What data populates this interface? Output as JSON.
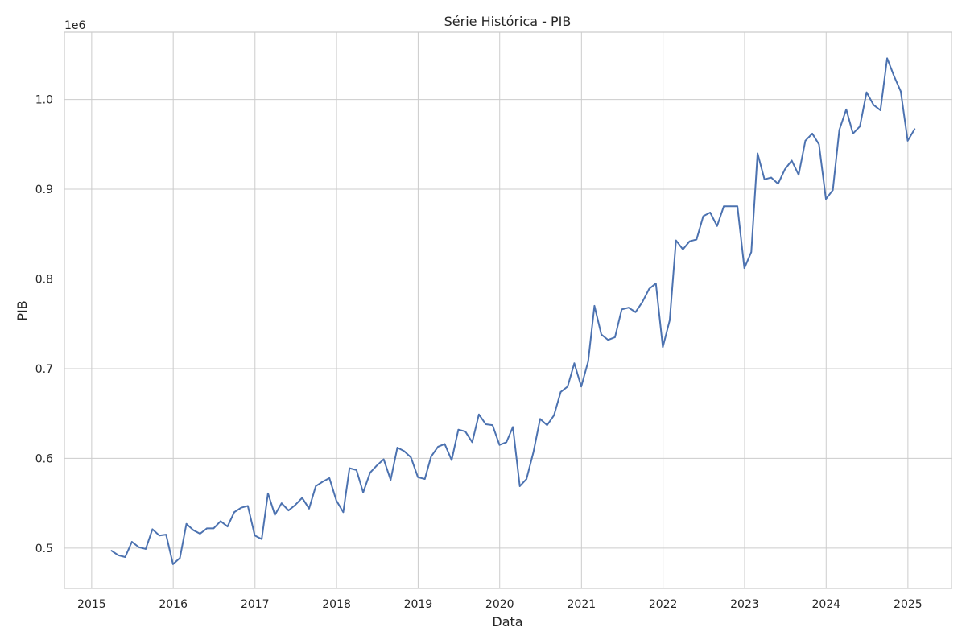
{
  "chart_data": {
    "type": "line",
    "title": "Série Histórica - PIB",
    "xlabel": "Data",
    "ylabel": "PIB",
    "offset_label": "1e6",
    "grid": true,
    "line_color": "#4c72b0",
    "x_ticks": [
      "2015",
      "2016",
      "2017",
      "2018",
      "2019",
      "2020",
      "2021",
      "2022",
      "2023",
      "2024",
      "2025"
    ],
    "y_ticks": [
      "0.5",
      "0.6",
      "0.7",
      "0.8",
      "0.9",
      "1.0"
    ],
    "y_tick_values": [
      500000,
      600000,
      700000,
      800000,
      900000,
      1000000
    ],
    "xlim": [
      "2014-09-01",
      "2025-07-15"
    ],
    "ylim": [
      455000,
      1075000
    ],
    "series": [
      {
        "values": [
          [
            "2015-03-31",
            497000
          ],
          [
            "2015-04-30",
            492000
          ],
          [
            "2015-05-31",
            490000
          ],
          [
            "2015-06-30",
            507000
          ],
          [
            "2015-07-31",
            501000
          ],
          [
            "2015-08-31",
            499000
          ],
          [
            "2015-09-30",
            521000
          ],
          [
            "2015-10-31",
            514000
          ],
          [
            "2015-11-30",
            515000
          ],
          [
            "2015-12-31",
            482000
          ],
          [
            "2016-01-31",
            489000
          ],
          [
            "2016-02-29",
            527000
          ],
          [
            "2016-03-31",
            520000
          ],
          [
            "2016-04-30",
            516000
          ],
          [
            "2016-05-31",
            522000
          ],
          [
            "2016-06-30",
            522000
          ],
          [
            "2016-07-31",
            530000
          ],
          [
            "2016-08-31",
            524000
          ],
          [
            "2016-09-30",
            540000
          ],
          [
            "2016-10-31",
            545000
          ],
          [
            "2016-11-30",
            547000
          ],
          [
            "2016-12-31",
            514000
          ],
          [
            "2017-01-31",
            510000
          ],
          [
            "2017-02-28",
            561000
          ],
          [
            "2017-03-31",
            537000
          ],
          [
            "2017-04-30",
            550000
          ],
          [
            "2017-05-31",
            542000
          ],
          [
            "2017-06-30",
            548000
          ],
          [
            "2017-07-31",
            556000
          ],
          [
            "2017-08-31",
            544000
          ],
          [
            "2017-09-30",
            569000
          ],
          [
            "2017-10-31",
            574000
          ],
          [
            "2017-11-30",
            578000
          ],
          [
            "2017-12-31",
            553000
          ],
          [
            "2018-01-31",
            540000
          ],
          [
            "2018-02-28",
            589000
          ],
          [
            "2018-03-31",
            587000
          ],
          [
            "2018-04-30",
            562000
          ],
          [
            "2018-05-31",
            584000
          ],
          [
            "2018-06-30",
            592000
          ],
          [
            "2018-07-31",
            599000
          ],
          [
            "2018-08-31",
            576000
          ],
          [
            "2018-09-30",
            612000
          ],
          [
            "2018-10-31",
            608000
          ],
          [
            "2018-11-30",
            601000
          ],
          [
            "2018-12-31",
            579000
          ],
          [
            "2019-01-31",
            577000
          ],
          [
            "2019-02-28",
            602000
          ],
          [
            "2019-03-31",
            613000
          ],
          [
            "2019-04-30",
            616000
          ],
          [
            "2019-05-31",
            598000
          ],
          [
            "2019-06-30",
            632000
          ],
          [
            "2019-07-31",
            630000
          ],
          [
            "2019-08-31",
            618000
          ],
          [
            "2019-09-30",
            649000
          ],
          [
            "2019-10-31",
            638000
          ],
          [
            "2019-11-30",
            637000
          ],
          [
            "2019-12-31",
            615000
          ],
          [
            "2020-01-31",
            618000
          ],
          [
            "2020-02-29",
            635000
          ],
          [
            "2020-03-31",
            569000
          ],
          [
            "2020-04-30",
            577000
          ],
          [
            "2020-05-31",
            607000
          ],
          [
            "2020-06-30",
            644000
          ],
          [
            "2020-07-31",
            637000
          ],
          [
            "2020-08-31",
            648000
          ],
          [
            "2020-09-30",
            674000
          ],
          [
            "2020-10-31",
            680000
          ],
          [
            "2020-11-30",
            706000
          ],
          [
            "2020-12-31",
            680000
          ],
          [
            "2021-01-31",
            708000
          ],
          [
            "2021-02-28",
            770000
          ],
          [
            "2021-03-31",
            738000
          ],
          [
            "2021-04-30",
            732000
          ],
          [
            "2021-05-31",
            735000
          ],
          [
            "2021-06-30",
            766000
          ],
          [
            "2021-07-31",
            768000
          ],
          [
            "2021-08-31",
            763000
          ],
          [
            "2021-09-30",
            774000
          ],
          [
            "2021-10-31",
            789000
          ],
          [
            "2021-11-30",
            795000
          ],
          [
            "2021-12-31",
            724000
          ],
          [
            "2022-01-31",
            754000
          ],
          [
            "2022-02-28",
            843000
          ],
          [
            "2022-03-31",
            833000
          ],
          [
            "2022-04-30",
            842000
          ],
          [
            "2022-05-31",
            844000
          ],
          [
            "2022-06-30",
            870000
          ],
          [
            "2022-07-31",
            874000
          ],
          [
            "2022-08-31",
            859000
          ],
          [
            "2022-09-30",
            881000
          ],
          [
            "2022-10-31",
            881000
          ],
          [
            "2022-11-30",
            881000
          ],
          [
            "2022-12-31",
            812000
          ],
          [
            "2023-01-31",
            830000
          ],
          [
            "2023-02-28",
            940000
          ],
          [
            "2023-03-31",
            911000
          ],
          [
            "2023-04-30",
            913000
          ],
          [
            "2023-05-31",
            906000
          ],
          [
            "2023-06-30",
            922000
          ],
          [
            "2023-07-31",
            932000
          ],
          [
            "2023-08-31",
            916000
          ],
          [
            "2023-09-30",
            954000
          ],
          [
            "2023-10-31",
            962000
          ],
          [
            "2023-11-30",
            950000
          ],
          [
            "2023-12-31",
            889000
          ],
          [
            "2024-01-31",
            899000
          ],
          [
            "2024-02-29",
            966000
          ],
          [
            "2024-03-31",
            989000
          ],
          [
            "2024-04-30",
            962000
          ],
          [
            "2024-05-31",
            970000
          ],
          [
            "2024-06-30",
            1008000
          ],
          [
            "2024-07-31",
            994000
          ],
          [
            "2024-08-31",
            988000
          ],
          [
            "2024-09-30",
            1046000
          ],
          [
            "2024-10-31",
            1026000
          ],
          [
            "2024-11-30",
            1009000
          ],
          [
            "2024-12-31",
            954000
          ],
          [
            "2025-01-31",
            967000
          ]
        ]
      }
    ]
  }
}
